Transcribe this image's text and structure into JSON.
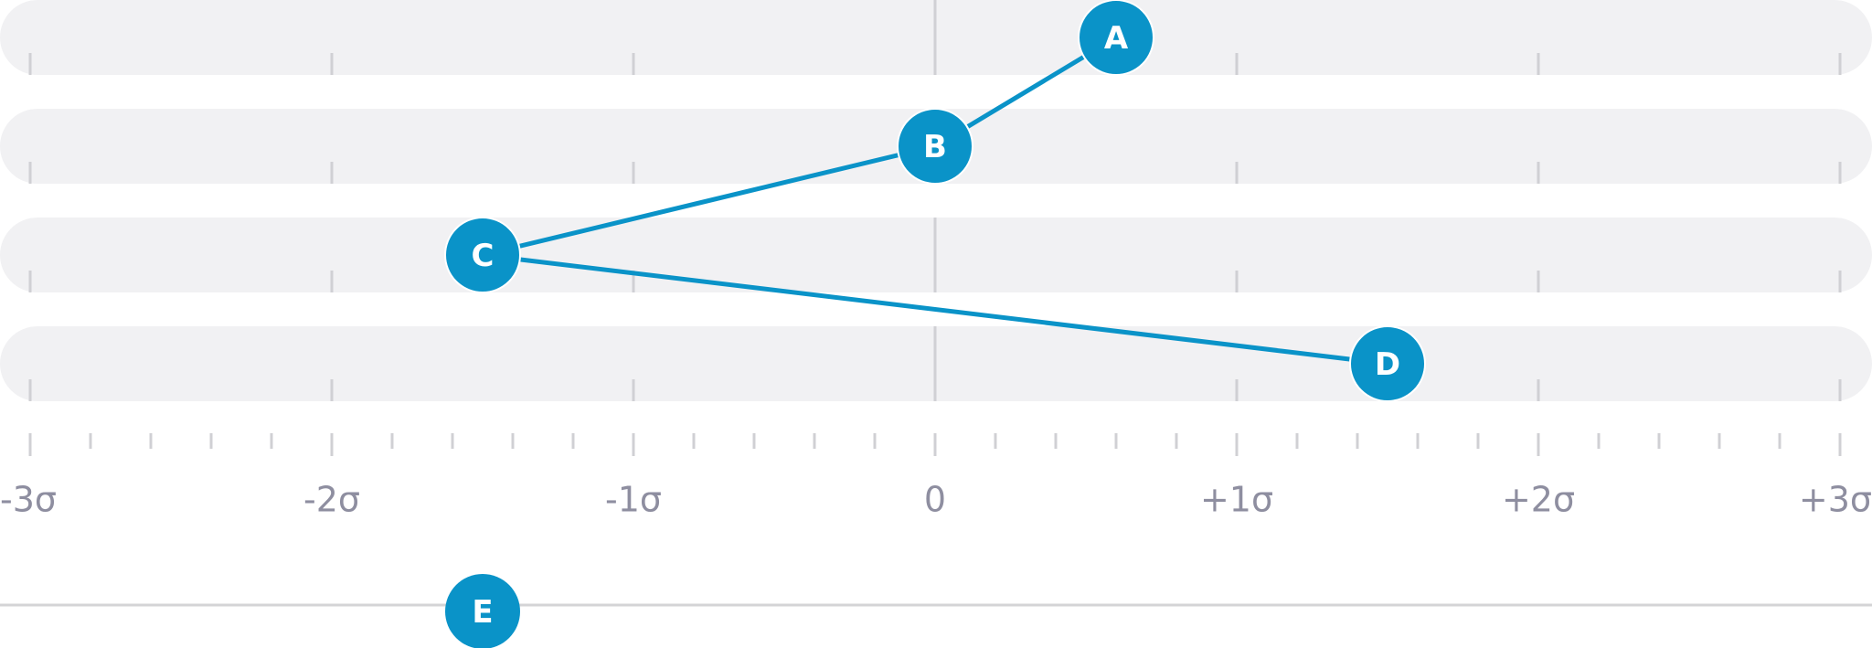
{
  "chart_data": {
    "type": "line",
    "color": "#0a93c8",
    "xlim": [
      -3,
      3
    ],
    "xticks": [
      {
        "value": -3,
        "label": "-3σ"
      },
      {
        "value": -2,
        "label": "-2σ"
      },
      {
        "value": -1,
        "label": "-1σ"
      },
      0,
      {
        "value": 1,
        "label": "+1σ"
      },
      {
        "value": 2,
        "label": "+2σ"
      },
      {
        "value": 3,
        "label": "+3σ"
      }
    ],
    "xminorticks": [
      -2.8,
      -2.6,
      -2.4,
      -2.2,
      -1.8,
      -1.6,
      -1.4,
      -1.2,
      -0.8,
      -0.6,
      -0.4,
      -0.2,
      0.2,
      0.4,
      0.6,
      0.8,
      1.2,
      1.4,
      1.6,
      1.8,
      2.2,
      2.4,
      2.6,
      2.8
    ],
    "points": [
      {
        "label": "A",
        "x": 0.6
      },
      {
        "label": "B",
        "x": 0
      },
      {
        "label": "C",
        "x": -1.5
      },
      {
        "label": "D",
        "x": 1.5
      }
    ],
    "marker": {
      "label": "E",
      "x": -1.5
    }
  }
}
